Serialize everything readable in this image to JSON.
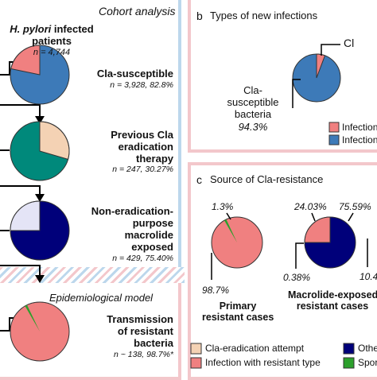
{
  "panel_a": {
    "title": "Cohort analysis",
    "patients_title_1": "H. pylori",
    "patients_title_2": " infected",
    "patients_title_3": "patients",
    "patients_n": "n = 4,744",
    "step1_label": "Cla-susceptible",
    "step1_n": "n = 3,928, 82.8%",
    "step2_label_1": "Previous Cla",
    "step2_label_2": "eradication",
    "step2_label_3": "therapy",
    "step2_n": "n = 247, 30.27%",
    "step3_label_1": "Non-eradication-",
    "step3_label_2": "purpose",
    "step3_label_3": "macrolide",
    "step3_label_4": "exposed",
    "step3_n": "n = 429, 75.40%",
    "model_title": "Epidemiological model",
    "step4_label_1": "Transmission",
    "step4_label_2": "of resistant",
    "step4_label_3": "bacteria",
    "step4_n": "n ~ 138, 98.7%*"
  },
  "panel_b": {
    "letter": "b",
    "title": "Types of new infections",
    "callout_cut": "Cl",
    "label_1": "Cla-",
    "label_2": "susceptible",
    "label_3": "bacteria",
    "pct": "94.3%",
    "legend": [
      "Infection",
      "Infection"
    ]
  },
  "panel_c": {
    "letter": "c",
    "title": "Source of Cla-resistance",
    "primary_top": "1.3%",
    "primary_bottom": "98.7%",
    "primary_label_1": "Primary",
    "primary_label_2": "resistant cases",
    "macro_top_left": "24.03%",
    "macro_top_right": "75.59%",
    "macro_bottom": "0.38%",
    "macro_label_1": "Macrolide-exposed",
    "macro_label_2": "resistant cases",
    "cut_right": "10.4",
    "legend": [
      {
        "label": "Cla-eradication attempt",
        "color": "#f4d2b4"
      },
      {
        "label": "Infection with resistant type",
        "color": "#f08080"
      },
      {
        "label": "Othe",
        "color": "#00007a"
      },
      {
        "label": "Spor",
        "color": "#2ca02c"
      }
    ]
  },
  "colors": {
    "salmon": "#f08080",
    "blue": "#3d7ab8",
    "peach": "#f4d2b4",
    "teal": "#00897b",
    "navy": "#00007a",
    "lavender": "#e4e4f6",
    "green": "#2ca02c",
    "border_blue": "#bcd7ec",
    "border_pink": "#f3c7cb"
  }
}
